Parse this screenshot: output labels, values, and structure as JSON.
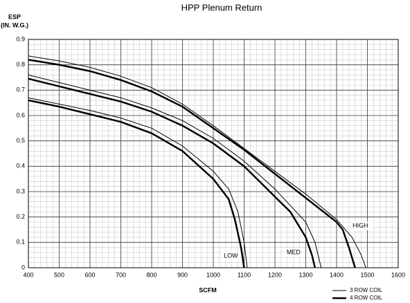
{
  "chart_data": {
    "type": "line",
    "title": "HPP Plenum Return",
    "y_label": [
      "ESP",
      "(IN. W.G.)"
    ],
    "x_label": "SCFM",
    "xlim": [
      400,
      1600
    ],
    "xticks": [
      400,
      500,
      600,
      700,
      800,
      900,
      1000,
      1100,
      1200,
      1300,
      1400,
      1500,
      1600
    ],
    "ylim": [
      0,
      0.9
    ],
    "yticks": [
      0,
      0.1,
      0.2,
      0.3,
      0.4,
      0.5,
      0.6,
      0.7,
      0.8,
      0.9
    ],
    "grid": true,
    "minor_divisions": 5,
    "color": "#000000",
    "legend": "lower right",
    "series": [
      {
        "name": "3 ROW COIL",
        "width": 1,
        "curves": [
          {
            "x": [
              400,
              500,
              600,
              700,
              800,
              900,
              1000,
              1100,
              1200,
              1300,
              1400,
              1450,
              1480,
              1495
            ],
            "values": [
              0.835,
              0.815,
              0.79,
              0.755,
              0.71,
              0.645,
              0.56,
              0.47,
              0.38,
              0.29,
              0.19,
              0.12,
              0.05,
              0
            ]
          },
          {
            "x": [
              400,
              500,
              600,
              700,
              800,
              900,
              1000,
              1100,
              1200,
              1300,
              1330,
              1350
            ],
            "values": [
              0.76,
              0.73,
              0.7,
              0.67,
              0.63,
              0.58,
              0.51,
              0.42,
              0.31,
              0.18,
              0.1,
              0
            ]
          },
          {
            "x": [
              400,
              500,
              600,
              700,
              800,
              900,
              1000,
              1050,
              1080,
              1100,
              1110
            ],
            "values": [
              0.67,
              0.645,
              0.62,
              0.59,
              0.55,
              0.48,
              0.38,
              0.31,
              0.22,
              0.1,
              0
            ]
          }
        ]
      },
      {
        "name": "4 ROW COIL",
        "width": 2.5,
        "curves": [
          {
            "x": [
              400,
              500,
              600,
              700,
              800,
              900,
              1000,
              1100,
              1200,
              1300,
              1400,
              1420,
              1440,
              1460
            ],
            "values": [
              0.82,
              0.8,
              0.775,
              0.74,
              0.695,
              0.635,
              0.55,
              0.465,
              0.37,
              0.275,
              0.18,
              0.15,
              0.08,
              0
            ]
          },
          {
            "x": [
              400,
              500,
              600,
              700,
              800,
              900,
              1000,
              1100,
              1200,
              1250,
              1300,
              1320,
              1330
            ],
            "values": [
              0.745,
              0.715,
              0.685,
              0.655,
              0.615,
              0.56,
              0.49,
              0.4,
              0.28,
              0.22,
              0.12,
              0.05,
              0
            ]
          },
          {
            "x": [
              400,
              500,
              600,
              700,
              800,
              900,
              1000,
              1050,
              1070,
              1090,
              1100
            ],
            "values": [
              0.66,
              0.635,
              0.605,
              0.575,
              0.53,
              0.46,
              0.35,
              0.27,
              0.19,
              0.08,
              0
            ]
          }
        ]
      }
    ],
    "annotations": [
      {
        "text": "LOW",
        "x": 1034,
        "y": 0.046
      },
      {
        "text": "MED",
        "x": 1238,
        "y": 0.06
      },
      {
        "text": "HIGH",
        "x": 1452,
        "y": 0.165
      }
    ]
  }
}
